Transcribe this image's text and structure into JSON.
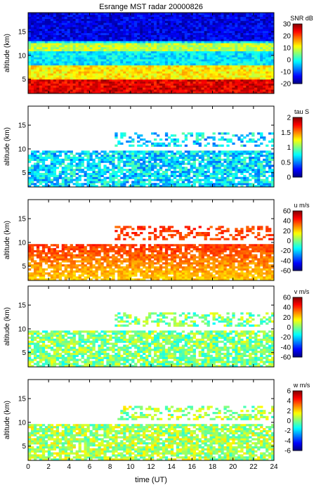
{
  "title": "Esrange MST radar 20000826",
  "xlabel": "time (UT)",
  "ylabel": "altitude (km)",
  "x_ticks": [
    "0",
    "2",
    "4",
    "6",
    "8",
    "10",
    "12",
    "14",
    "16",
    "18",
    "20",
    "22",
    "24"
  ],
  "y_ticks": [
    "5",
    "10",
    "15"
  ],
  "chart_data": [
    {
      "type": "heatmap",
      "quantity": "SNR",
      "colorbar_label": "SNR dB",
      "x": {
        "min": 0,
        "max": 24,
        "unit": "UT hours"
      },
      "y": {
        "min": 2,
        "max": 19,
        "unit": "km"
      },
      "clim": [
        -20,
        30
      ],
      "colorbar_ticks": [
        "30",
        "20",
        "10",
        "0",
        "-10",
        "-20"
      ],
      "colorbar_tick_values": [
        30,
        20,
        10,
        0,
        -10,
        -20
      ],
      "description_levels": [
        {
          "alt_range": [
            2,
            5
          ],
          "value": 25
        },
        {
          "alt_range": [
            5,
            8
          ],
          "value": 12
        },
        {
          "alt_range": [
            8,
            13
          ],
          "value": -2
        },
        {
          "alt_range": [
            13,
            19
          ],
          "value": -15
        }
      ],
      "rows": 40,
      "cols": 88
    },
    {
      "type": "heatmap",
      "quantity": "tau",
      "colorbar_label": "tau S",
      "x": {
        "min": 0,
        "max": 24,
        "unit": "UT hours"
      },
      "y": {
        "min": 2,
        "max": 19,
        "unit": "km"
      },
      "clim": [
        0,
        2
      ],
      "colorbar_ticks": [
        "2",
        "1.5",
        "1",
        "0.5",
        "0"
      ],
      "colorbar_tick_values": [
        2,
        1.5,
        1,
        0.5,
        0
      ],
      "typical_value": 0.7,
      "rows": 40,
      "cols": 88
    },
    {
      "type": "heatmap",
      "quantity": "u",
      "colorbar_label": "u m/s",
      "x": {
        "min": 0,
        "max": 24,
        "unit": "UT hours"
      },
      "y": {
        "min": 2,
        "max": 19,
        "unit": "km"
      },
      "clim": [
        -60,
        60
      ],
      "colorbar_ticks": [
        "60",
        "40",
        "20",
        "0",
        "-20",
        "-40",
        "-60"
      ],
      "colorbar_tick_values": [
        60,
        40,
        20,
        0,
        -20,
        -40,
        -60
      ],
      "profile": [
        {
          "alt": 3,
          "value": 22
        },
        {
          "alt": 6,
          "value": 30
        },
        {
          "alt": 9,
          "value": 38
        },
        {
          "alt": 12,
          "value": 38
        }
      ],
      "rows": 40,
      "cols": 88
    },
    {
      "type": "heatmap",
      "quantity": "v",
      "colorbar_label": "v m/s",
      "x": {
        "min": 0,
        "max": 24,
        "unit": "UT hours"
      },
      "y": {
        "min": 2,
        "max": 19,
        "unit": "km"
      },
      "clim": [
        -60,
        60
      ],
      "colorbar_ticks": [
        "60",
        "40",
        "20",
        "0",
        "-20",
        "-40",
        "-60"
      ],
      "colorbar_tick_values": [
        60,
        40,
        20,
        0,
        -20,
        -40,
        -60
      ],
      "typical_value": 0,
      "rows": 40,
      "cols": 88
    },
    {
      "type": "heatmap",
      "quantity": "w",
      "colorbar_label": "w m/s",
      "x": {
        "min": 0,
        "max": 24,
        "unit": "UT hours"
      },
      "y": {
        "min": 2,
        "max": 19,
        "unit": "km"
      },
      "clim": [
        -6,
        6
      ],
      "colorbar_ticks": [
        "6",
        "4",
        "2",
        "0",
        "-2",
        "-4",
        "-6"
      ],
      "colorbar_tick_values": [
        6,
        4,
        2,
        0,
        -2,
        -4,
        -6
      ],
      "typical_value": 0.5,
      "rows": 40,
      "cols": 88
    }
  ]
}
